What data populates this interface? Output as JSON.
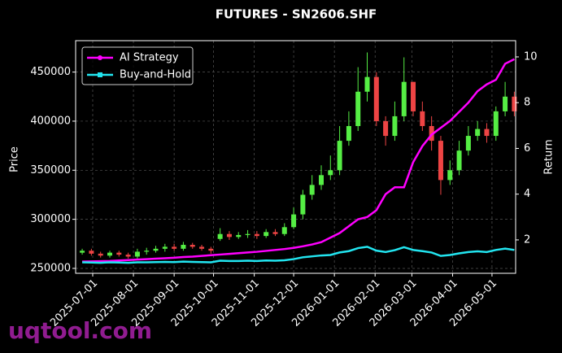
{
  "chart_data": {
    "type": "candlestick",
    "title": "FUTURES - SN2606.SHF",
    "ylabel": "Price",
    "y2label": "Return",
    "watermark": "uqtool.com",
    "x": [
      "2025-06-23",
      "2025-06-30",
      "2025-07-07",
      "2025-07-14",
      "2025-07-21",
      "2025-07-28",
      "2025-08-04",
      "2025-08-11",
      "2025-08-18",
      "2025-08-25",
      "2025-09-01",
      "2025-09-08",
      "2025-09-15",
      "2025-09-22",
      "2025-09-29",
      "2025-10-06",
      "2025-10-13",
      "2025-10-20",
      "2025-10-27",
      "2025-11-03",
      "2025-11-10",
      "2025-11-17",
      "2025-11-24",
      "2025-12-01",
      "2025-12-08",
      "2025-12-15",
      "2025-12-22",
      "2025-12-29",
      "2026-01-05",
      "2026-01-12",
      "2026-01-19",
      "2026-01-26",
      "2026-02-02",
      "2026-02-09",
      "2026-02-16",
      "2026-02-23",
      "2026-03-02",
      "2026-03-09",
      "2026-03-16",
      "2026-03-23",
      "2026-03-30",
      "2026-04-06",
      "2026-04-13",
      "2026-04-20",
      "2026-04-27",
      "2026-05-04",
      "2026-05-11",
      "2026-05-18"
    ],
    "candles": {
      "up_color": "#55ee44",
      "down_color": "#ee4444",
      "open": [
        266000,
        268000,
        265000,
        263000,
        266000,
        264000,
        262000,
        267000,
        268000,
        270000,
        272000,
        270000,
        274000,
        272000,
        270000,
        280000,
        285000,
        282000,
        284000,
        285000,
        283000,
        287000,
        285000,
        292000,
        305000,
        325000,
        335000,
        345000,
        350000,
        380000,
        395000,
        430000,
        445000,
        400000,
        385000,
        405000,
        440000,
        410000,
        395000,
        380000,
        340000,
        350000,
        370000,
        385000,
        392000,
        385000,
        410000,
        425000
      ],
      "high": [
        270000,
        270000,
        267000,
        268000,
        268000,
        266000,
        270000,
        271000,
        273000,
        275000,
        275000,
        277000,
        276000,
        274000,
        272000,
        291000,
        288000,
        287000,
        289000,
        288000,
        290000,
        290000,
        296000,
        312000,
        330000,
        345000,
        355000,
        365000,
        395000,
        410000,
        455000,
        470000,
        450000,
        405000,
        420000,
        465000,
        440000,
        420000,
        405000,
        385000,
        360000,
        380000,
        395000,
        400000,
        398000,
        415000,
        440000,
        430000
      ],
      "low": [
        264000,
        263000,
        261000,
        261000,
        262000,
        260000,
        260000,
        264000,
        266000,
        267000,
        268000,
        268000,
        270000,
        268000,
        265000,
        278000,
        279000,
        280000,
        281000,
        280000,
        281000,
        283000,
        283000,
        290000,
        300000,
        320000,
        330000,
        340000,
        345000,
        375000,
        390000,
        420000,
        395000,
        375000,
        380000,
        400000,
        405000,
        390000,
        370000,
        325000,
        335000,
        345000,
        365000,
        380000,
        378000,
        380000,
        405000,
        405000
      ],
      "close": [
        268000,
        265000,
        263000,
        266000,
        264000,
        262000,
        267000,
        268000,
        270000,
        272000,
        270000,
        274000,
        272000,
        270000,
        268000,
        285000,
        282000,
        284000,
        285000,
        283000,
        287000,
        285000,
        292000,
        305000,
        325000,
        335000,
        345000,
        350000,
        380000,
        395000,
        430000,
        445000,
        400000,
        385000,
        405000,
        440000,
        410000,
        395000,
        380000,
        340000,
        350000,
        370000,
        385000,
        392000,
        385000,
        410000,
        425000,
        410000
      ]
    },
    "series": [
      {
        "name": "AI Strategy",
        "color": "#ff00ff",
        "axis": "y2",
        "values": [
          1.05,
          1.06,
          1.07,
          1.08,
          1.1,
          1.12,
          1.14,
          1.16,
          1.18,
          1.2,
          1.22,
          1.25,
          1.27,
          1.3,
          1.33,
          1.36,
          1.39,
          1.42,
          1.45,
          1.48,
          1.52,
          1.56,
          1.6,
          1.65,
          1.72,
          1.8,
          1.9,
          2.1,
          2.3,
          2.6,
          2.9,
          3.0,
          3.3,
          4.0,
          4.3,
          4.3,
          5.4,
          6.1,
          6.6,
          6.9,
          7.2,
          7.6,
          8.0,
          8.5,
          8.8,
          9.0,
          9.7,
          9.9
        ]
      },
      {
        "name": "Buy-and-Hold",
        "color": "#22e5f0",
        "axis": "y2",
        "values": [
          1.02,
          1.01,
          1.0,
          1.02,
          1.01,
          1.0,
          1.02,
          1.02,
          1.03,
          1.04,
          1.03,
          1.05,
          1.04,
          1.03,
          1.02,
          1.09,
          1.08,
          1.08,
          1.09,
          1.08,
          1.1,
          1.09,
          1.11,
          1.16,
          1.24,
          1.28,
          1.32,
          1.34,
          1.45,
          1.51,
          1.64,
          1.7,
          1.53,
          1.47,
          1.55,
          1.68,
          1.56,
          1.51,
          1.45,
          1.3,
          1.34,
          1.41,
          1.47,
          1.5,
          1.47,
          1.56,
          1.62,
          1.56
        ]
      }
    ],
    "xlim": [
      "2025-06-18",
      "2026-05-19"
    ],
    "xticks": [
      "2025-07-01",
      "2025-08-01",
      "2025-09-01",
      "2025-10-01",
      "2025-11-01",
      "2025-12-01",
      "2026-01-01",
      "2026-02-01",
      "2026-03-01",
      "2026-04-01",
      "2026-05-01"
    ],
    "ylim": [
      245000,
      482000
    ],
    "yticks": [
      250000,
      300000,
      350000,
      400000,
      450000
    ],
    "y2lim": [
      0.54,
      10.71
    ],
    "y2ticks": [
      2,
      4,
      6,
      8,
      10
    ],
    "grid": true,
    "legend": "upper left"
  }
}
